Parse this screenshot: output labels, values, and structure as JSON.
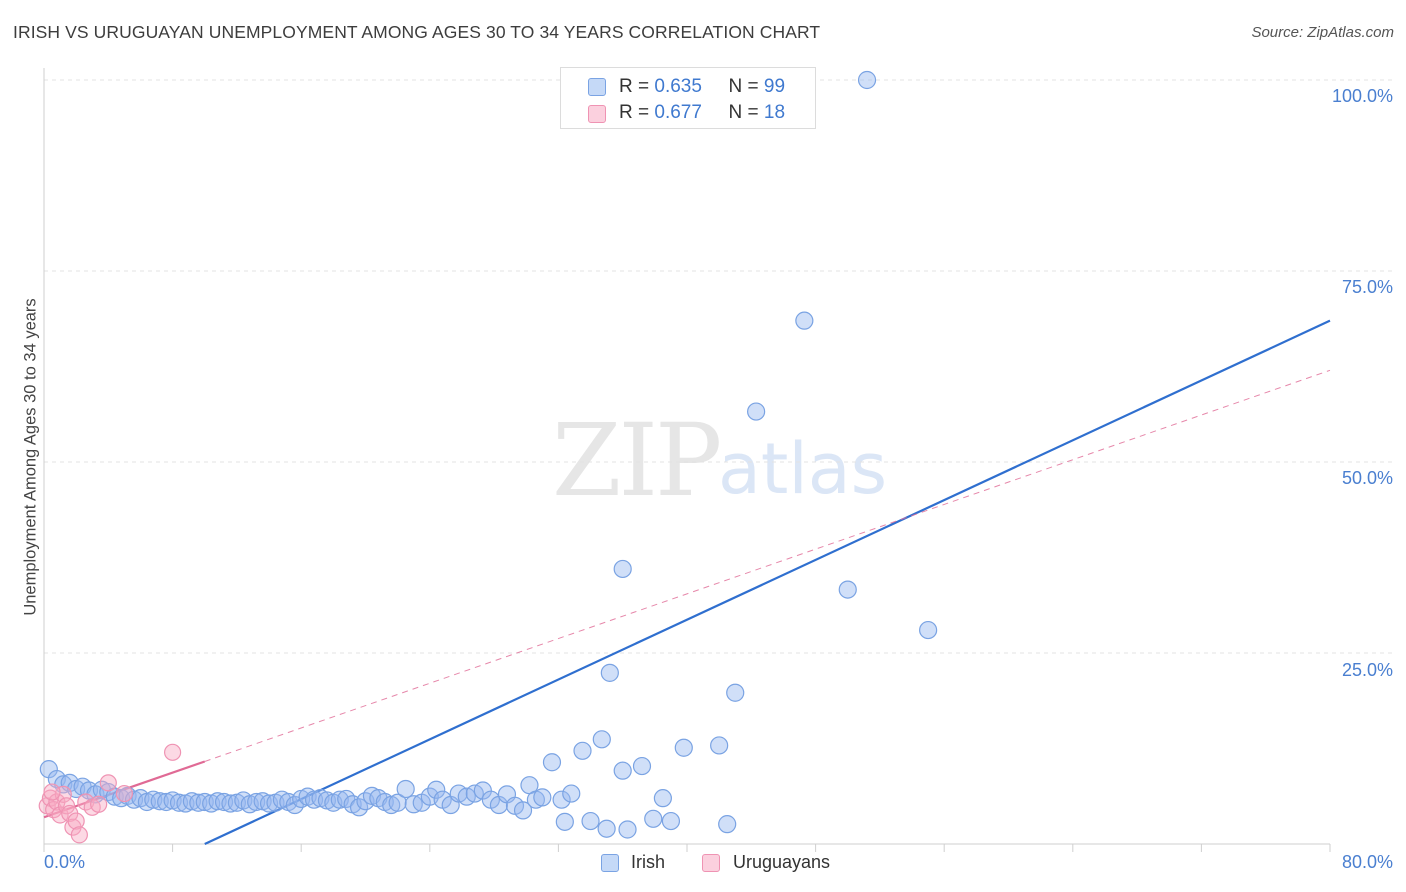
{
  "header": {
    "title": "IRISH VS URUGUAYAN UNEMPLOYMENT AMONG AGES 30 TO 34 YEARS CORRELATION CHART",
    "source": "Source: ZipAtlas.com"
  },
  "watermark": {
    "zip": "ZIP",
    "atlas": "atlas"
  },
  "stats": {
    "r_label": "R =",
    "n_label": "N =",
    "irish": {
      "r": "0.635",
      "n": "99"
    },
    "uruguayans": {
      "r": "0.677",
      "n": "18"
    }
  },
  "legend": {
    "irish": "Irish",
    "uruguayans": "Uruguayans"
  },
  "colors": {
    "irish_fill": "rgba(150,185,240,0.45)",
    "irish_stroke": "#7aa3e3",
    "irish_line": "#2f6fcf",
    "uruguayans_fill": "rgba(248,170,195,0.45)",
    "uruguayans_stroke": "#ef93b3",
    "uruguayans_line": "#e06a95",
    "grid": "#e3e3e3",
    "tick_text": "#4a7fd0"
  },
  "chart_data": {
    "type": "scatter",
    "title": "IRISH VS URUGUAYAN UNEMPLOYMENT AMONG AGES 30 TO 34 YEARS CORRELATION CHART",
    "xlabel": "",
    "ylabel": "Unemployment Among Ages 30 to 34 years",
    "xlim": [
      0,
      80
    ],
    "ylim": [
      0,
      100
    ],
    "x_tick_labels": [
      "0.0%",
      "80.0%"
    ],
    "y_ticks": [
      25,
      50,
      75,
      100
    ],
    "y_tick_labels": [
      "25.0%",
      "50.0%",
      "75.0%",
      "100.0%"
    ],
    "grid": true,
    "series": [
      {
        "name": "Irish",
        "points": [
          [
            0.3,
            9.8
          ],
          [
            0.8,
            8.5
          ],
          [
            1.2,
            7.8
          ],
          [
            1.6,
            8.0
          ],
          [
            2.0,
            7.2
          ],
          [
            2.4,
            7.5
          ],
          [
            2.8,
            7.0
          ],
          [
            3.2,
            6.5
          ],
          [
            3.6,
            7.1
          ],
          [
            4.0,
            6.8
          ],
          [
            4.4,
            6.2
          ],
          [
            4.8,
            6.0
          ],
          [
            5.2,
            6.3
          ],
          [
            5.6,
            5.8
          ],
          [
            6.0,
            6.0
          ],
          [
            6.4,
            5.5
          ],
          [
            6.8,
            5.8
          ],
          [
            7.2,
            5.6
          ],
          [
            7.6,
            5.5
          ],
          [
            8.0,
            5.7
          ],
          [
            8.4,
            5.4
          ],
          [
            8.8,
            5.3
          ],
          [
            9.2,
            5.6
          ],
          [
            9.6,
            5.4
          ],
          [
            10.0,
            5.5
          ],
          [
            10.4,
            5.3
          ],
          [
            10.8,
            5.6
          ],
          [
            11.2,
            5.5
          ],
          [
            11.6,
            5.3
          ],
          [
            12.0,
            5.4
          ],
          [
            12.4,
            5.7
          ],
          [
            12.8,
            5.2
          ],
          [
            13.2,
            5.5
          ],
          [
            13.6,
            5.6
          ],
          [
            14.0,
            5.3
          ],
          [
            14.4,
            5.4
          ],
          [
            14.8,
            5.8
          ],
          [
            15.2,
            5.5
          ],
          [
            15.6,
            5.1
          ],
          [
            16.0,
            5.9
          ],
          [
            16.4,
            6.2
          ],
          [
            16.8,
            5.8
          ],
          [
            17.2,
            6.0
          ],
          [
            17.6,
            5.7
          ],
          [
            18.0,
            5.4
          ],
          [
            18.4,
            5.8
          ],
          [
            18.8,
            5.9
          ],
          [
            19.2,
            5.2
          ],
          [
            19.6,
            4.8
          ],
          [
            20.0,
            5.6
          ],
          [
            20.4,
            6.3
          ],
          [
            20.8,
            6.0
          ],
          [
            21.2,
            5.5
          ],
          [
            21.6,
            5.1
          ],
          [
            22.0,
            5.4
          ],
          [
            22.5,
            7.2
          ],
          [
            23.0,
            5.2
          ],
          [
            23.5,
            5.4
          ],
          [
            24.0,
            6.2
          ],
          [
            24.4,
            7.1
          ],
          [
            24.8,
            5.8
          ],
          [
            25.3,
            5.1
          ],
          [
            25.8,
            6.6
          ],
          [
            26.3,
            6.2
          ],
          [
            26.8,
            6.6
          ],
          [
            27.3,
            7.0
          ],
          [
            27.8,
            5.8
          ],
          [
            28.3,
            5.1
          ],
          [
            28.8,
            6.5
          ],
          [
            29.3,
            5.0
          ],
          [
            29.8,
            4.4
          ],
          [
            30.2,
            7.7
          ],
          [
            30.6,
            5.8
          ],
          [
            31.0,
            6.1
          ],
          [
            31.6,
            10.7
          ],
          [
            32.2,
            5.8
          ],
          [
            32.8,
            6.6
          ],
          [
            33.5,
            12.2
          ],
          [
            34.7,
            13.7
          ],
          [
            37.2,
            10.2
          ],
          [
            36.3,
            1.9
          ],
          [
            37.9,
            3.3
          ],
          [
            39.8,
            12.6
          ],
          [
            42.0,
            12.9
          ],
          [
            43.0,
            19.8
          ],
          [
            35.2,
            22.4
          ],
          [
            32.4,
            2.9
          ],
          [
            34.0,
            3.0
          ],
          [
            39.0,
            3.0
          ],
          [
            42.5,
            2.6
          ],
          [
            36.0,
            9.6
          ],
          [
            38.5,
            6.0
          ],
          [
            35.0,
            2.0
          ],
          [
            36.0,
            36.0
          ],
          [
            44.3,
            56.6
          ],
          [
            47.3,
            68.5
          ],
          [
            50.0,
            33.3
          ],
          [
            55.0,
            28.0
          ],
          [
            51.2,
            100.0
          ]
        ]
      },
      {
        "name": "Uruguayans",
        "points": [
          [
            0.2,
            5.0
          ],
          [
            0.4,
            6.0
          ],
          [
            0.6,
            4.5
          ],
          [
            0.8,
            5.5
          ],
          [
            1.0,
            3.8
          ],
          [
            1.2,
            6.5
          ],
          [
            1.4,
            5.0
          ],
          [
            1.6,
            4.0
          ],
          [
            1.8,
            2.2
          ],
          [
            2.0,
            3.0
          ],
          [
            2.2,
            1.2
          ],
          [
            2.6,
            5.5
          ],
          [
            3.0,
            4.8
          ],
          [
            3.4,
            5.2
          ],
          [
            4.0,
            8.0
          ],
          [
            5.0,
            6.6
          ],
          [
            8.0,
            12.0
          ],
          [
            0.5,
            6.8
          ]
        ]
      }
    ],
    "trend_lines": [
      {
        "series": "Irish",
        "x1": 10,
        "y1": 0,
        "x2": 80,
        "y2": 68.5
      },
      {
        "series": "Uruguayans",
        "x1": 0,
        "y1": 3.5,
        "x2": 10,
        "y2": 10.8,
        "dashed_extension_to": [
          80,
          62
        ]
      }
    ]
  }
}
